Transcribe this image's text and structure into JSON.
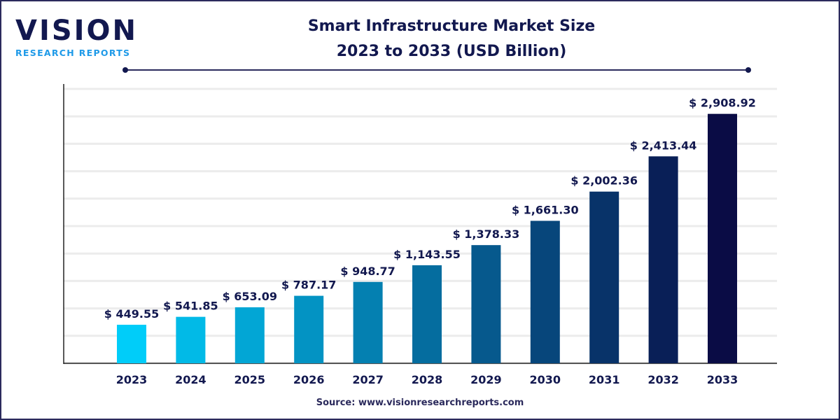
{
  "logo": {
    "name": "VISION",
    "tagline": "RESEARCH REPORTS"
  },
  "title_line1": "Smart Infrastructure Market Size",
  "title_line2": "2023 to 2033 (USD Billion)",
  "source": "Source: www.visionresearchreports.com",
  "colors": {
    "start": "#00cdf9",
    "end": "#0a0c45",
    "text": "#12184f"
  },
  "chart_data": {
    "type": "bar",
    "title": "Smart Infrastructure Market Size 2023 to 2033 (USD Billion)",
    "categories": [
      "2023",
      "2024",
      "2025",
      "2026",
      "2027",
      "2028",
      "2029",
      "2030",
      "2031",
      "2032",
      "2033"
    ],
    "values": [
      449.55,
      541.85,
      653.09,
      787.17,
      948.77,
      1143.55,
      1378.33,
      1661.3,
      2002.36,
      2413.44,
      2908.92
    ],
    "data_labels": [
      "$ 449.55",
      "$ 541.85",
      "$ 653.09",
      "$ 787.17",
      "$ 948.77",
      "$ 1,143.55",
      "$ 1,378.33",
      "$ 1,661.30",
      "$ 2,002.36",
      "$ 2,413.44",
      "$ 2,908.92"
    ],
    "xlabel": "",
    "ylabel": "",
    "ylim": [
      0,
      3200
    ],
    "grid": true,
    "legend": "none"
  }
}
